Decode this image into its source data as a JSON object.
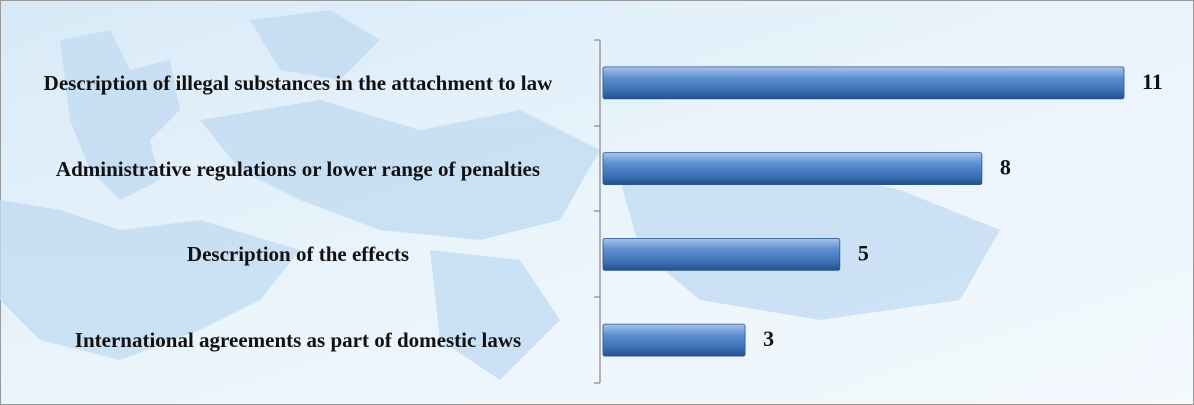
{
  "chart_data": {
    "type": "bar",
    "orientation": "horizontal",
    "categories": [
      "Description of illegal substances in the attachment to law",
      "Administrative regulations or lower range of penalties",
      "Description of the effects",
      "International agreements as part of domestic laws"
    ],
    "values": [
      11,
      8,
      5,
      3
    ],
    "color": "#4f81bd"
  }
}
